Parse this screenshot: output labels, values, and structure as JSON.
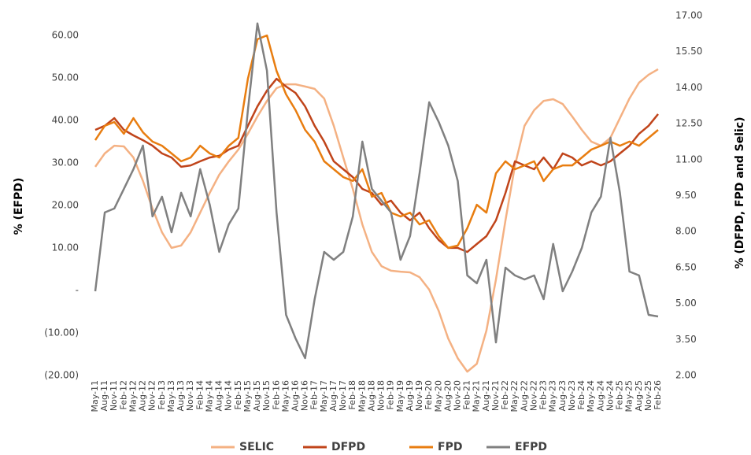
{
  "chart_data": {
    "type": "line",
    "y_label": "% (EFPD)",
    "y2_label": "% (DFPD, FPD and Selic)",
    "categories": [
      "May-11",
      "Aug-11",
      "Nov-11",
      "Feb-12",
      "May-12",
      "Aug-12",
      "Nov-12",
      "Feb-13",
      "May-13",
      "Aug-13",
      "Nov-13",
      "Feb-14",
      "May-14",
      "Aug-14",
      "Nov-14",
      "Feb-15",
      "May-15",
      "Aug-15",
      "Nov-15",
      "Feb-16",
      "May-16",
      "Aug-16",
      "Nov-16",
      "Feb-17",
      "May-17",
      "Aug-17",
      "Nov-17",
      "Feb-18",
      "May-18",
      "Aug-18",
      "Nov-18",
      "Feb-19",
      "May-19",
      "Aug-19",
      "Nov-19",
      "Feb-20",
      "May-20",
      "Aug-20",
      "Nov-20",
      "Feb-21",
      "May-21",
      "Aug-21",
      "Nov-21",
      "Feb-22",
      "May-22",
      "Aug-22",
      "Nov-22",
      "Feb-23",
      "May-23",
      "Aug-23",
      "Nov-23",
      "Feb-24",
      "May-24",
      "Aug-24",
      "Nov-24",
      "Feb-25",
      "May-25",
      "Aug-25",
      "Nov-25",
      "Feb-26"
    ],
    "series": [
      {
        "name": "SELIC",
        "color": "#f4b183",
        "axis": "y2",
        "values": [
          10.7,
          11.26,
          11.58,
          11.55,
          11.09,
          10.11,
          8.96,
          7.97,
          7.32,
          7.42,
          7.97,
          8.79,
          9.61,
          10.37,
          10.93,
          11.42,
          12.08,
          12.8,
          13.45,
          13.98,
          14.14,
          14.14,
          14.05,
          13.95,
          13.55,
          12.41,
          11.09,
          9.78,
          8.3,
          7.15,
          6.56,
          6.37,
          6.33,
          6.3,
          6.1,
          5.58,
          4.69,
          3.54,
          2.72,
          2.16,
          2.49,
          3.87,
          6.0,
          8.47,
          10.76,
          12.41,
          13.06,
          13.45,
          13.52,
          13.32,
          12.8,
          12.24,
          11.75,
          11.58,
          11.91,
          12.73,
          13.55,
          14.21,
          14.54,
          14.77
        ]
      },
      {
        "name": "DFPD",
        "color": "#c0441a",
        "axis": "y2",
        "values": [
          12.24,
          12.41,
          12.73,
          12.24,
          12.01,
          11.81,
          11.58,
          11.26,
          11.09,
          10.7,
          10.76,
          10.93,
          11.09,
          11.16,
          11.42,
          11.58,
          12.41,
          13.22,
          13.88,
          14.37,
          14.05,
          13.78,
          13.22,
          12.41,
          11.75,
          10.93,
          10.6,
          10.27,
          9.78,
          9.61,
          9.12,
          9.29,
          8.79,
          8.47,
          8.79,
          8.14,
          7.65,
          7.32,
          7.32,
          7.15,
          7.48,
          7.81,
          8.47,
          9.61,
          10.93,
          10.76,
          10.6,
          11.09,
          10.6,
          11.26,
          11.09,
          10.76,
          10.93,
          10.76,
          10.93,
          11.26,
          11.58,
          12.08,
          12.41,
          12.9
        ]
      },
      {
        "name": "FPD",
        "color": "#e87d10",
        "axis": "y2",
        "values": [
          11.81,
          12.41,
          12.57,
          12.08,
          12.73,
          12.14,
          11.75,
          11.58,
          11.26,
          10.93,
          11.09,
          11.58,
          11.26,
          11.09,
          11.58,
          11.91,
          14.37,
          16.02,
          16.18,
          14.7,
          13.72,
          13.06,
          12.24,
          11.75,
          10.93,
          10.6,
          10.27,
          10.11,
          10.6,
          9.45,
          9.61,
          8.79,
          8.63,
          8.79,
          8.3,
          8.47,
          7.81,
          7.32,
          7.42,
          8.14,
          9.12,
          8.79,
          10.43,
          10.93,
          10.6,
          10.76,
          10.93,
          10.11,
          10.6,
          10.76,
          10.76,
          11.09,
          11.42,
          11.58,
          11.75,
          11.58,
          11.75,
          11.58,
          11.91,
          12.24
        ]
      },
      {
        "name": "EFPD",
        "color": "#808080",
        "axis": "y",
        "values": [
          -0.19,
          18.33,
          19.26,
          23.89,
          28.52,
          34.07,
          17.41,
          22.04,
          13.7,
          22.96,
          17.41,
          28.52,
          20.19,
          9.07,
          15.56,
          19.26,
          42.41,
          62.78,
          51.67,
          18.33,
          -5.74,
          -11.3,
          -15.93,
          -2.04,
          9.07,
          7.22,
          9.07,
          17.41,
          35.0,
          23.89,
          21.11,
          18.33,
          7.22,
          12.78,
          27.59,
          44.26,
          39.63,
          34.07,
          25.74,
          3.52,
          1.67,
          7.22,
          -12.22,
          5.37,
          3.52,
          2.59,
          3.52,
          -2.04,
          10.93,
          -0.19,
          4.44,
          10.0,
          18.33,
          22.04,
          35.93,
          22.96,
          4.44,
          3.52,
          -5.74,
          -6.11
        ]
      }
    ],
    "ylim": [
      -20,
      64.6
    ],
    "yticks": [
      {
        "value": 60,
        "label": "60.00"
      },
      {
        "value": 50,
        "label": "50.00"
      },
      {
        "value": 40,
        "label": "40.00"
      },
      {
        "value": 30,
        "label": "30.00"
      },
      {
        "value": 20,
        "label": "20.00"
      },
      {
        "value": 10,
        "label": "10.00"
      },
      {
        "value": 0,
        "label": "-"
      },
      {
        "value": -10,
        "label": "(10.00)"
      },
      {
        "value": -20,
        "label": "(20.00)"
      }
    ],
    "y2lim": [
      2,
      17
    ],
    "y2ticks": [
      {
        "value": 17,
        "label": "17.00"
      },
      {
        "value": 15.5,
        "label": "15.50"
      },
      {
        "value": 14,
        "label": "14.00"
      },
      {
        "value": 12.5,
        "label": "12.50"
      },
      {
        "value": 11,
        "label": "11.00"
      },
      {
        "value": 9.5,
        "label": "9.50"
      },
      {
        "value": 8,
        "label": "8.00"
      },
      {
        "value": 6.5,
        "label": "6.50"
      },
      {
        "value": 5,
        "label": "5.00"
      },
      {
        "value": 3.5,
        "label": "3.50"
      },
      {
        "value": 2,
        "label": "2.00"
      }
    ],
    "grid": false,
    "legend": "bottom"
  }
}
